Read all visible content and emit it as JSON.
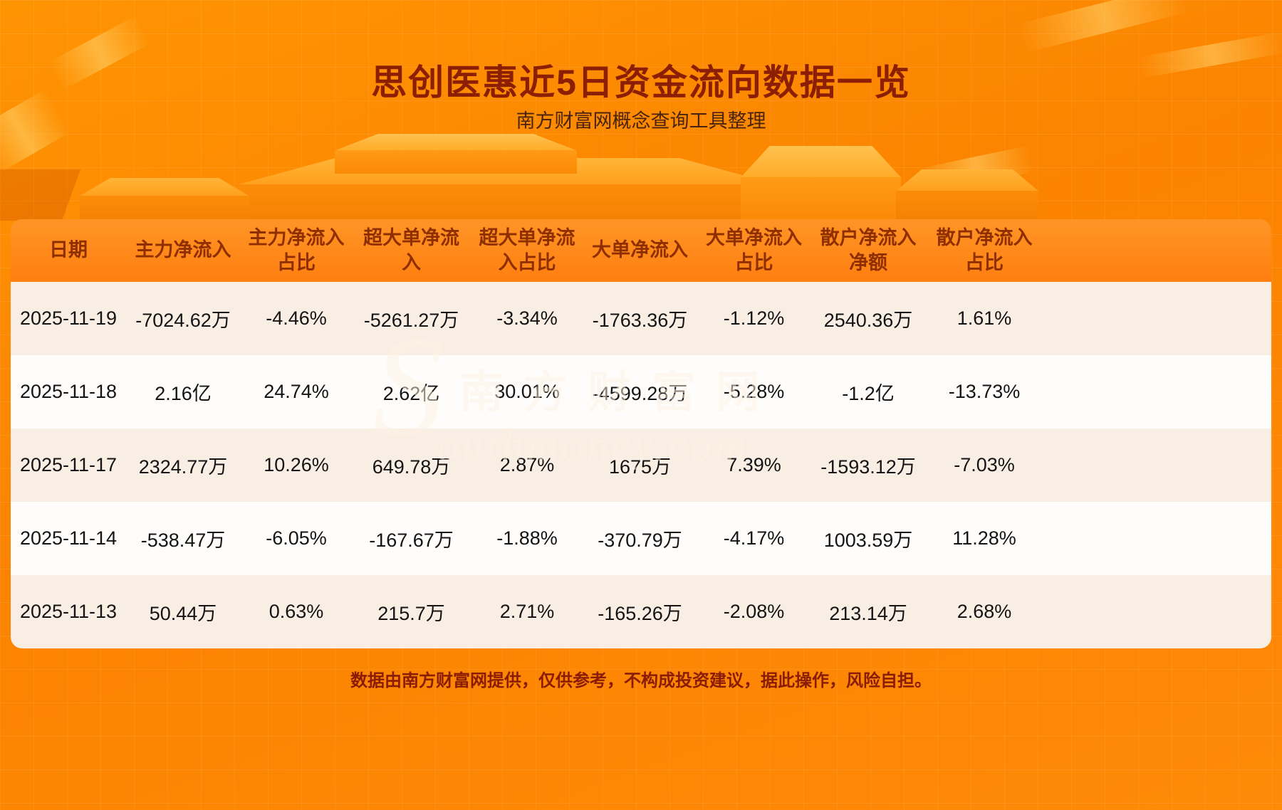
{
  "page": {
    "title": "思创医惠近5日资金流向数据一览",
    "subtitle": "南方财富网概念查询工具整理",
    "footer": "数据由南方财富网提供，仅供参考，不构成投资建议，据此操作，风险自担。",
    "watermark_s": "S",
    "watermark_cn": "南方财富网",
    "watermark_en": "outhmoney.com"
  },
  "colors": {
    "background_orange": "#fb8300",
    "title_text": "#8c1e03",
    "subtitle_text": "#49230b",
    "header_bg": "#ff8a1c",
    "header_text": "#8f2f00",
    "row_cream": "#f9eee3",
    "row_white": "#fffdfb",
    "cell_text": "#141414",
    "footer_text": "#8a1c03"
  },
  "chart_data": {
    "type": "table",
    "title": "思创医惠近5日资金流向数据一览",
    "subtitle": "南方财富网概念查询工具整理",
    "columns": [
      "日期",
      "主力净流入",
      "主力净流入占比",
      "超大单净流入",
      "超大单净流入占比",
      "大单净流入",
      "大单净流入占比",
      "散户净流入净额",
      "散户净流入占比"
    ],
    "rows": [
      [
        "2025-11-19",
        "-7024.62万",
        "-4.46%",
        "-5261.27万",
        "-3.34%",
        "-1763.36万",
        "-1.12%",
        "2540.36万",
        "1.61%"
      ],
      [
        "2025-11-18",
        "2.16亿",
        "24.74%",
        "2.62亿",
        "30.01%",
        "-4599.28万",
        "-5.28%",
        "-1.2亿",
        "-13.73%"
      ],
      [
        "2025-11-17",
        "2324.77万",
        "10.26%",
        "649.78万",
        "2.87%",
        "1675万",
        "7.39%",
        "-1593.12万",
        "-7.03%"
      ],
      [
        "2025-11-14",
        "-538.47万",
        "-6.05%",
        "-167.67万",
        "-1.88%",
        "-370.79万",
        "-4.17%",
        "1003.59万",
        "11.28%"
      ],
      [
        "2025-11-13",
        "50.44万",
        "0.63%",
        "215.7万",
        "2.71%",
        "-165.26万",
        "-2.08%",
        "213.14万",
        "2.68%"
      ]
    ]
  }
}
